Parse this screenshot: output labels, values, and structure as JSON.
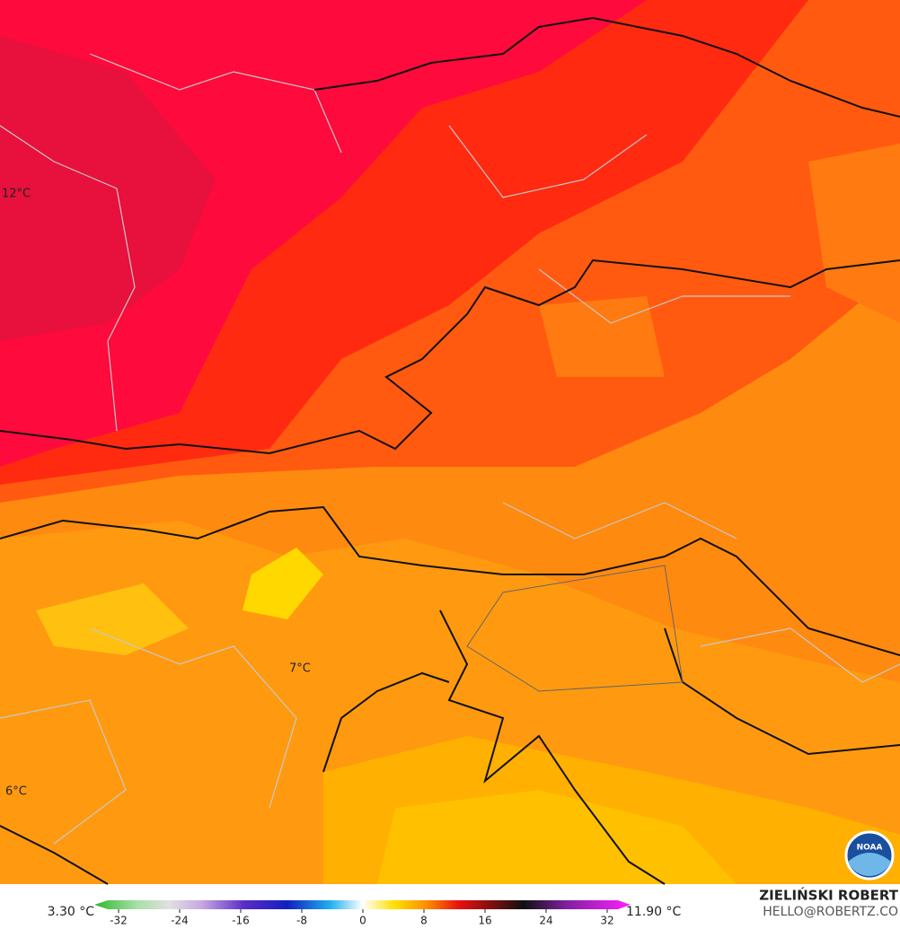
{
  "map": {
    "contour_labels": [
      "12°C",
      "7°C",
      "6°C"
    ]
  },
  "colorbar": {
    "min_label": "3.30 °C",
    "max_label": "11.90 °C",
    "ticks": [
      -32,
      -24,
      -16,
      -8,
      0,
      8,
      16,
      24,
      32
    ]
  },
  "credit": {
    "name": "ZIELIŃSKI ROBERT",
    "email": "HELLO@ROBERTZ.CO",
    "logo": "NOAA"
  }
}
